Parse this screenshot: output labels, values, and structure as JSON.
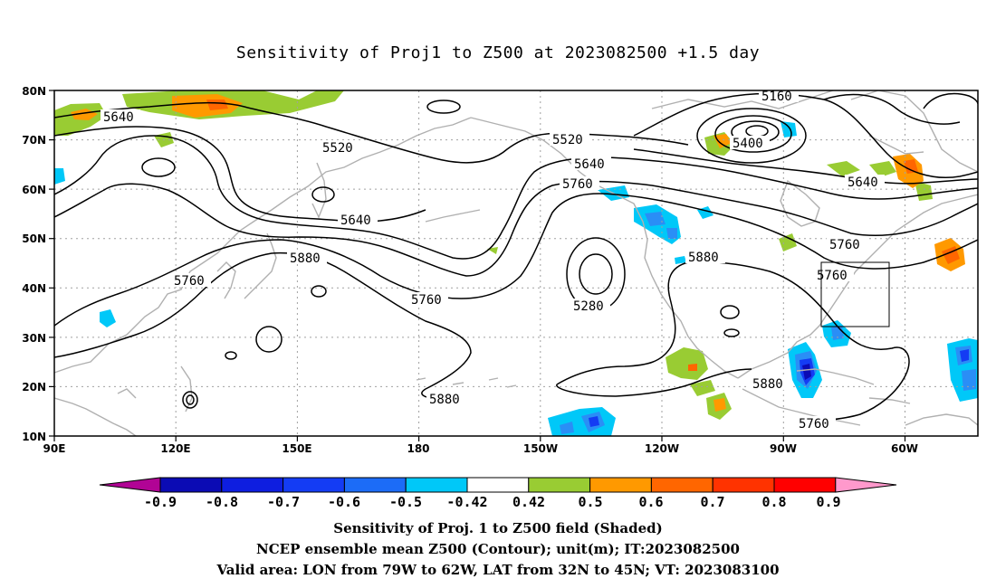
{
  "title": "Sensitivity of Proj1 to Z500 at 2023082500 +1.5 day",
  "map": {
    "lat_labels": [
      "80N",
      "70N",
      "60N",
      "50N",
      "40N",
      "30N",
      "20N",
      "10N"
    ],
    "lon_labels": [
      "90E",
      "120E",
      "150E",
      "180",
      "150W",
      "120W",
      "90W",
      "60W"
    ],
    "extent": {
      "lon_min": 90,
      "lon_max": 318,
      "lat_min": 10,
      "lat_max": 80
    },
    "valid_box": {
      "lon_from": -79,
      "lon_to": -62,
      "lat_from": 32,
      "lat_to": 45
    },
    "contour_labels": [
      "5640",
      "5520",
      "5520",
      "5640",
      "5640",
      "5760",
      "5880",
      "5760",
      "5760",
      "5880",
      "5880",
      "5880",
      "5760",
      "5280",
      "5160",
      "5400",
      "5640",
      "5760"
    ],
    "colors": {
      "contour": "#000000",
      "coast": "#b0b0b0",
      "grid": "#a0a0a0"
    }
  },
  "colorbar": {
    "ticks": [
      "-0.9",
      "-0.8",
      "-0.7",
      "-0.6",
      "-0.5",
      "-0.42",
      "0.42",
      "0.5",
      "0.6",
      "0.7",
      "0.8",
      "0.9"
    ],
    "colors": [
      "#b10495",
      "#0b0bb4",
      "#0e1ee0",
      "#143cf4",
      "#1c6cf7",
      "#2a8ef6",
      "#00c8f8",
      "#ffffff",
      "#99cc33",
      "#ff9900",
      "#ff6600",
      "#ff3300",
      "#ff0000",
      "#ff99cc"
    ]
  },
  "footer": {
    "line1": "Sensitivity of Proj. 1 to Z500 field (Shaded)",
    "line2": "NCEP ensemble mean Z500 (Contour); unit(m); IT:2023082500",
    "line3": "Valid area: LON from 79W to 62W, LAT from 32N to 45N; VT: 2023083100"
  }
}
